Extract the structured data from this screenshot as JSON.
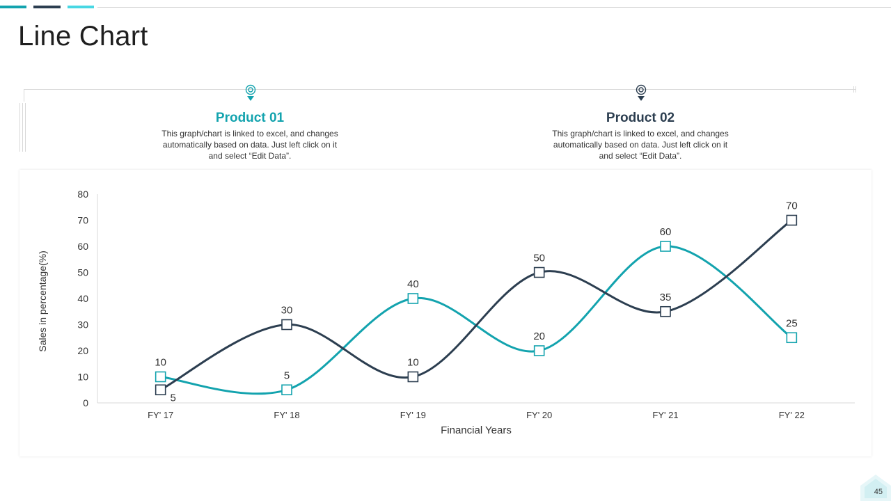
{
  "page": {
    "title": "Line Chart",
    "page_number": "45"
  },
  "legend": {
    "products": [
      {
        "title": "Product 01",
        "description": "This graph/chart is linked to excel, and changes automatically based on data. Just left click on it and select “Edit Data”.",
        "icon": "location-pin-icon",
        "color": "#13a3ae"
      },
      {
        "title": "Product 02",
        "description": "This graph/chart is linked to excel, and changes automatically based on data. Just left click on it and select “Edit Data”.",
        "icon": "location-pin-icon",
        "color": "#2c3e50"
      }
    ]
  },
  "colors": {
    "accent_teal": "#13a3ae",
    "accent_dark": "#2c3e50",
    "accent_cyan": "#48d7e3"
  },
  "chart_data": {
    "type": "line",
    "title": "",
    "xlabel": "Financial Years",
    "ylabel": "Sales in percentage(%)",
    "categories": [
      "FY' 17",
      "FY' 18",
      "FY' 19",
      "FY' 20",
      "FY' 21",
      "FY' 22"
    ],
    "ylim": [
      0,
      80
    ],
    "yticks": [
      0,
      10,
      20,
      30,
      40,
      50,
      60,
      70,
      80
    ],
    "grid": false,
    "smooth": true,
    "marker": "square",
    "series": [
      {
        "name": "Product 01",
        "values": [
          10,
          5,
          40,
          20,
          60,
          25
        ],
        "color": "#13a3ae"
      },
      {
        "name": "Product 02",
        "values": [
          5,
          30,
          10,
          50,
          35,
          70
        ],
        "color": "#2c3e50"
      }
    ]
  }
}
